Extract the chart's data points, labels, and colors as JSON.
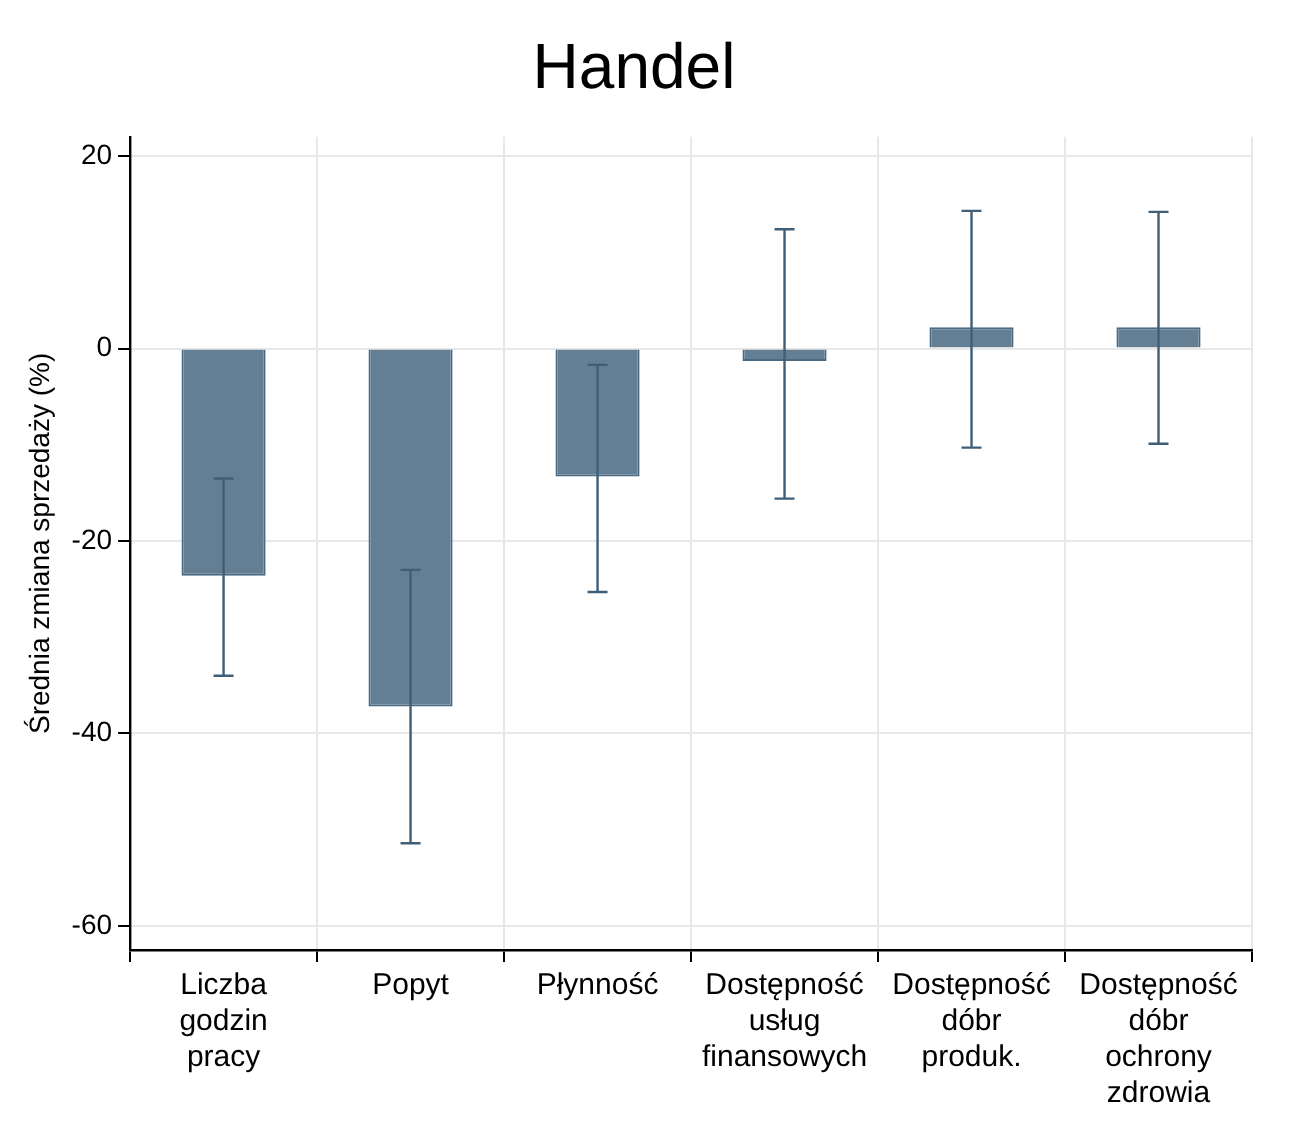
{
  "chart_data": {
    "type": "bar",
    "title": "Handel",
    "ylabel": "Średnia zmiana sprzedaży (%)",
    "categories": [
      "Liczba\ngodzin\npracy",
      "Popyt",
      "Płynność",
      "Dostępność\nusług\nfinansowych",
      "Dostępność\ndóbr\nproduk.",
      "Dostępność\ndóbr\nochrony\nzdrowia"
    ],
    "values": [
      -23.6,
      -37.2,
      -13.3,
      -1.3,
      2.2,
      2.2
    ],
    "errors": [
      [
        -34.0,
        -13.5
      ],
      [
        -51.4,
        -23.0
      ],
      [
        -25.3,
        -1.7
      ],
      [
        -15.6,
        12.4
      ],
      [
        -10.3,
        14.3
      ],
      [
        -9.9,
        14.2
      ]
    ],
    "color": "#647f94",
    "ylim": [
      -62.5,
      22
    ],
    "yticks": [
      -60,
      -40,
      -20,
      0,
      20
    ],
    "grid": true
  }
}
